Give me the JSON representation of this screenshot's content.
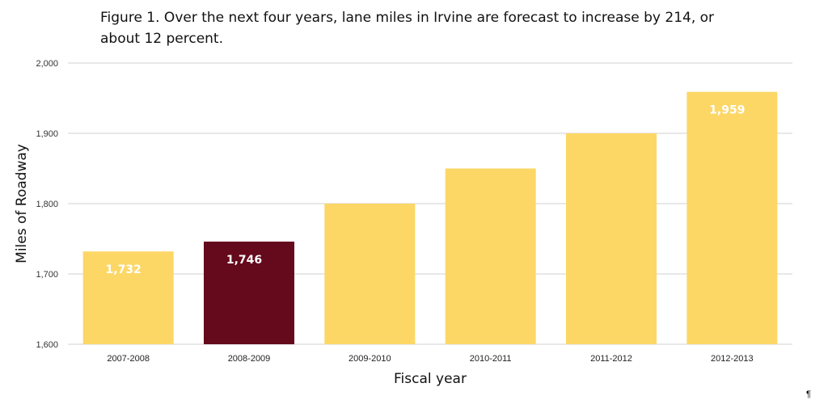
{
  "chart_data": {
    "type": "bar",
    "title": "Figure 1. Over the next four years, lane miles in Irvine are forecast to increase by 214, or about 12 percent.",
    "xlabel": "Fiscal year",
    "ylabel": "Miles of Roadway",
    "categories": [
      "2007-2008",
      "2008-2009",
      "2009-2010",
      "2010-2011",
      "2011-2012",
      "2012-2013"
    ],
    "values": [
      1732,
      1746,
      1800,
      1850,
      1900,
      1959
    ],
    "data_labels": [
      "1,732",
      "1,746",
      "",
      "",
      "",
      "1,959"
    ],
    "highlight_index": 1,
    "ylim": [
      1600,
      2000
    ],
    "yticks": [
      1600,
      1700,
      1800,
      1900,
      2000
    ],
    "ytick_labels": [
      "1,600",
      "1,700",
      "1,800",
      "1,900",
      "2,000"
    ],
    "grid": true,
    "legend": "none",
    "colors": {
      "bar": "#FDD766",
      "highlight": "#65091C",
      "grid": "#D9D9D9",
      "label": "#FFFFFF"
    }
  },
  "page": {
    "pilcrow": "¶"
  }
}
